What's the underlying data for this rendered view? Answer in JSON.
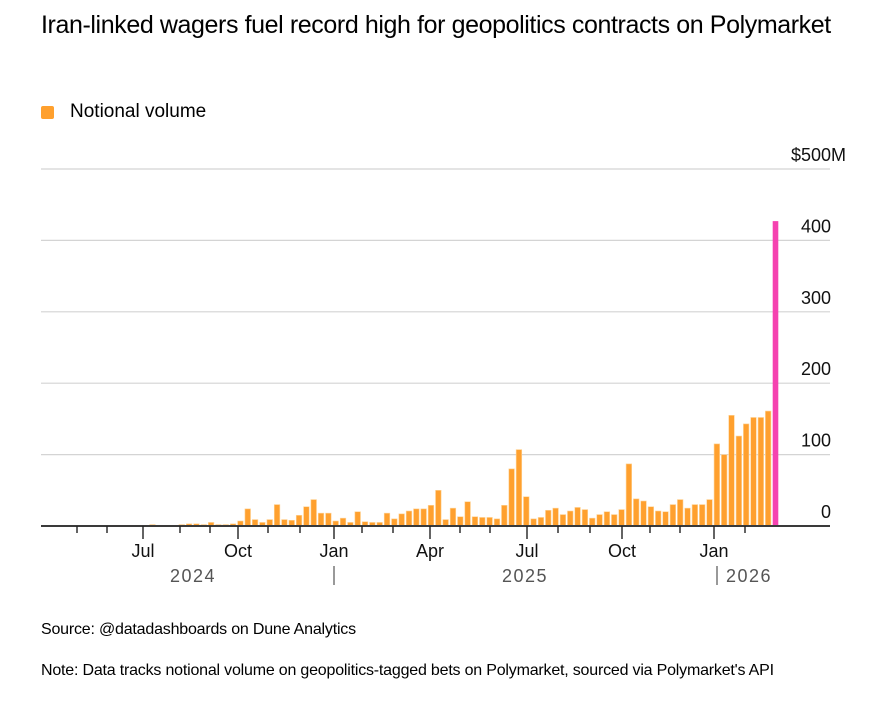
{
  "title": "Iran-linked wagers fuel record high for geopolitics contracts on Polymarket",
  "legend": {
    "label": "Notional volume",
    "color": "#ffa02e"
  },
  "highlight_color": "#f542b0",
  "source": "Source: @datadashboards on Dune Analytics",
  "note": "Note: Data tracks notional volume on geopolitics-tagged bets on Polymarket, sourced via Polymarket's API",
  "chart_data": {
    "type": "bar",
    "title": "Iran-linked wagers fuel record high for geopolitics contracts on Polymarket",
    "xlabel": "",
    "ylabel": "Notional volume",
    "ylim": [
      0,
      500
    ],
    "y_ticks": [
      0,
      100,
      200,
      300,
      400,
      500
    ],
    "y_tick_labels": [
      "0",
      "100",
      "200",
      "300",
      "400",
      "$500M"
    ],
    "y_axis_position": "right",
    "grid": true,
    "x_tick_labels": [
      "Jul",
      "Oct",
      "Jan",
      "Apr",
      "Jul",
      "Oct",
      "Jan"
    ],
    "year_labels": [
      "2024",
      "2025",
      "2026"
    ],
    "frequency": "weekly",
    "series": [
      {
        "name": "Notional volume",
        "unit": "$M",
        "values": [
          1,
          1,
          1,
          1,
          1,
          2,
          1,
          1,
          1,
          2,
          3,
          3,
          2,
          5,
          2,
          2,
          3,
          7,
          24,
          9,
          5,
          9,
          30,
          9,
          8,
          15,
          27,
          37,
          18,
          18,
          7,
          11,
          5,
          20,
          6,
          5,
          5,
          18,
          10,
          17,
          21,
          24,
          24,
          29,
          50,
          9,
          25,
          13,
          34,
          13,
          12,
          12,
          10,
          29,
          80,
          107,
          41,
          10,
          12,
          22,
          25,
          16,
          21,
          26,
          23,
          11,
          16,
          20,
          16,
          23,
          87,
          38,
          35,
          27,
          21,
          20,
          30,
          37,
          25,
          30,
          30,
          37,
          115,
          100,
          155,
          126,
          143,
          152,
          152,
          161,
          427
        ]
      }
    ],
    "highlight_last": true,
    "legend": {
      "entries": [
        "Notional volume"
      ],
      "position": "top-left"
    }
  }
}
